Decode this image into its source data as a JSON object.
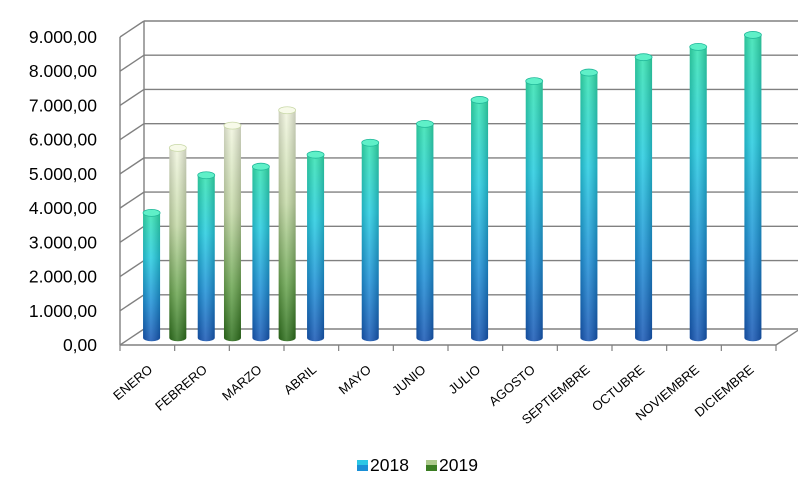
{
  "chart_data": {
    "type": "bar",
    "categories": [
      "ENERO",
      "FEBRERO",
      "MARZO",
      "ABRIL",
      "MAYO",
      "JUNIO",
      "JULIO",
      "AGOSTO",
      "SEPTIEMBRE",
      "OCTUBRE",
      "NOVIEMBRE",
      "DICIEMBRE"
    ],
    "series": [
      {
        "name": "2018",
        "values": [
          3650,
          4750,
          5000,
          5350,
          5700,
          6250,
          6950,
          7500,
          7750,
          8200,
          8500,
          8850
        ]
      },
      {
        "name": "2019",
        "values": [
          5550,
          6200,
          6650,
          null,
          null,
          null,
          null,
          null,
          null,
          null,
          null,
          null
        ]
      }
    ],
    "yticks": [
      "0,00",
      "1.000,00",
      "2.000,00",
      "3.000,00",
      "4.000,00",
      "5.000,00",
      "6.000,00",
      "7.000,00",
      "8.000,00",
      "9.000,00"
    ],
    "ylim": [
      0,
      9000
    ],
    "grid": true,
    "legend_position": "bottom",
    "colors": {
      "2018_top": "#2fe0b0",
      "2018_mid": "#22b8e0",
      "2018_bottom": "#1658b8",
      "2019_top": "#eef3d8",
      "2019_mid": "#a9c98a",
      "2019_bottom": "#2e7d1e",
      "grid": "#808080"
    }
  }
}
